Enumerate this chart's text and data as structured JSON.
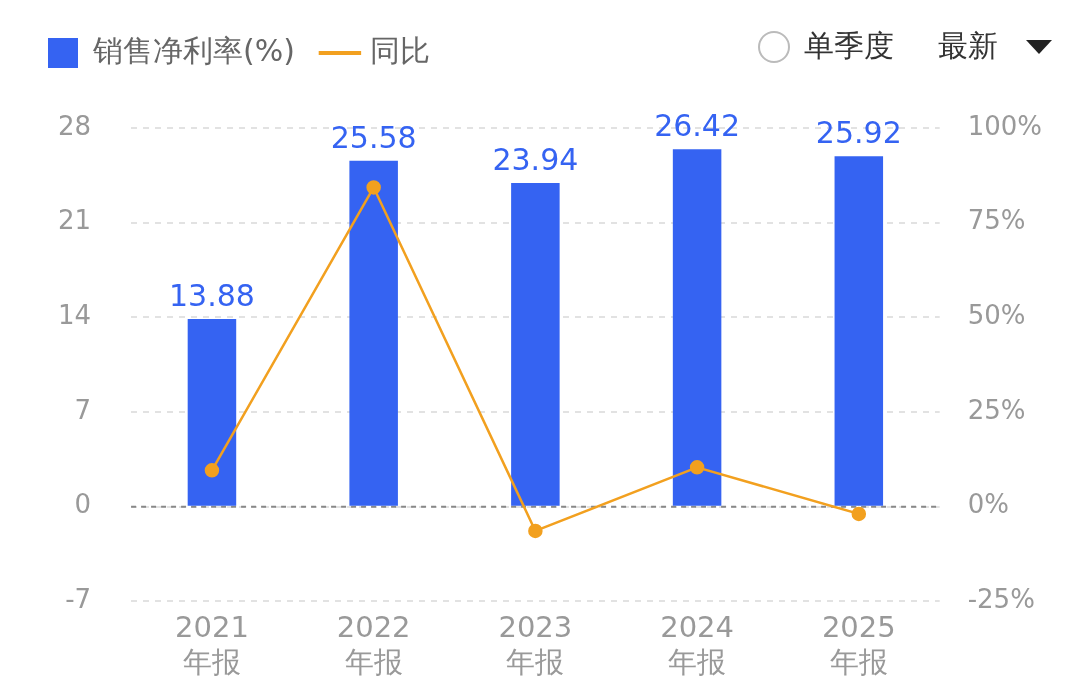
{
  "chart_data": {
    "type": "bar",
    "categories": [
      "2021\n年报",
      "2022\n年报",
      "2023\n年报",
      "2024\n年报",
      "2025\n年报"
    ],
    "series": [
      {
        "name": "销售净利率(%)",
        "color": "#3563f2",
        "values": [
          13.88,
          25.58,
          23.94,
          26.42,
          25.92
        ],
        "value_labels": [
          "13.88",
          "25.58",
          "23.94",
          "26.42",
          "25.92"
        ]
      },
      {
        "name": "同比",
        "type": "line",
        "axis": "y2",
        "color": "#f2a01f",
        "values": [
          9.6,
          84.3,
          -6.4,
          10.4,
          -1.9
        ]
      }
    ],
    "ylim": [
      -7,
      28
    ],
    "yticks": [
      -7,
      0,
      7,
      14,
      21,
      28
    ],
    "y2lim": [
      -25,
      100
    ],
    "y2ticks": [
      {
        "value": -25,
        "label": "-25%"
      },
      {
        "value": 0,
        "label": "0%"
      },
      {
        "value": 25,
        "label": "25%"
      },
      {
        "value": 50,
        "label": "50%"
      },
      {
        "value": 75,
        "label": "75%"
      },
      {
        "value": 100,
        "label": "100%"
      }
    ],
    "ref_lines": [
      {
        "axis": "y",
        "value": 0,
        "color": "#888888",
        "line_style": "dashed"
      }
    ],
    "grid": "y",
    "legend": "top left",
    "marker": "circle",
    "annotations": [
      "单季度",
      "最新"
    ]
  }
}
